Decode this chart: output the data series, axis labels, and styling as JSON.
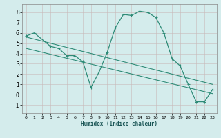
{
  "line1_x": [
    0,
    1,
    3,
    4,
    5,
    6,
    7,
    8,
    9,
    10,
    11,
    12,
    13,
    14,
    15,
    16,
    17,
    18,
    19,
    20,
    21,
    22,
    23
  ],
  "line1_y": [
    5.7,
    6.0,
    4.7,
    4.5,
    3.8,
    3.8,
    3.2,
    0.7,
    2.2,
    4.1,
    6.5,
    7.8,
    7.7,
    8.1,
    8.0,
    7.5,
    6.0,
    3.5,
    2.8,
    1.0,
    -0.7,
    -0.7,
    0.5
  ],
  "line2_x": [
    0,
    23
  ],
  "line2_y": [
    5.6,
    1.0
  ],
  "line3_x": [
    0,
    23
  ],
  "line3_y": [
    4.5,
    0.1
  ],
  "line_color": "#2e8b77",
  "bg_color": "#d4ecec",
  "grid_major_color": "#c0d8d8",
  "grid_minor_color": "#ddeaea",
  "xlabel": "Humidex (Indice chaleur)",
  "ylim": [
    -1.8,
    8.8
  ],
  "xlim": [
    -0.5,
    23.5
  ],
  "yticks": [
    -1,
    0,
    1,
    2,
    3,
    4,
    5,
    6,
    7,
    8
  ],
  "xticks": [
    0,
    1,
    2,
    3,
    4,
    5,
    6,
    7,
    8,
    9,
    10,
    11,
    12,
    13,
    14,
    15,
    16,
    17,
    18,
    19,
    20,
    21,
    22,
    23
  ]
}
